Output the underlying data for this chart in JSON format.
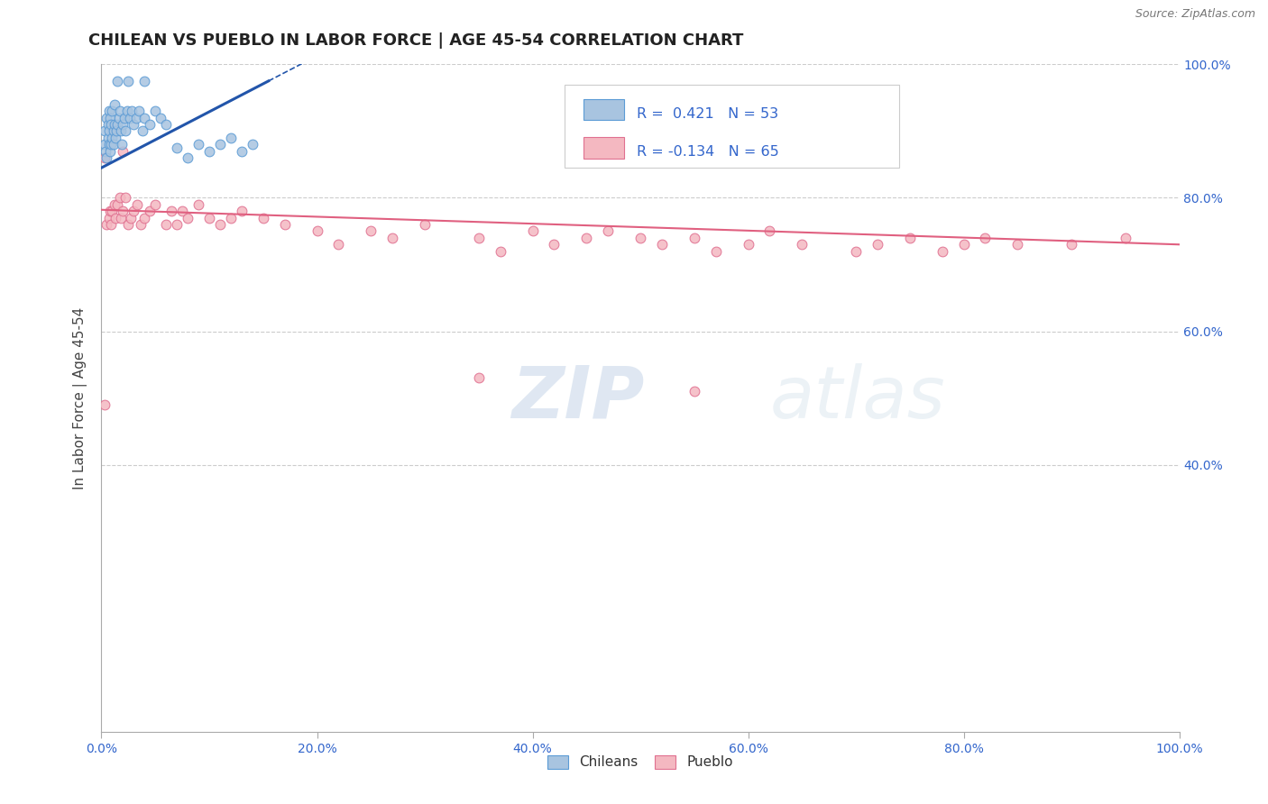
{
  "title": "CHILEAN VS PUEBLO IN LABOR FORCE | AGE 45-54 CORRELATION CHART",
  "source_text": "Source: ZipAtlas.com",
  "ylabel": "In Labor Force | Age 45-54",
  "xlabel": "",
  "xlim": [
    0.0,
    1.0
  ],
  "ylim": [
    0.0,
    1.0
  ],
  "xtick_labels": [
    "0.0%",
    "20.0%",
    "40.0%",
    "60.0%",
    "80.0%",
    "100.0%"
  ],
  "ytick_right_labels": [
    "40.0%",
    "60.0%",
    "80.0%",
    "100.0%"
  ],
  "ytick_right_vals": [
    0.4,
    0.6,
    0.8,
    1.0
  ],
  "grid_color": "#cccccc",
  "background_color": "#ffffff",
  "chilean_color": "#a8c4e0",
  "chilean_edge_color": "#5b9bd5",
  "pueblo_color": "#f4b8c1",
  "pueblo_edge_color": "#e07090",
  "blue_line_color": "#2255aa",
  "pink_line_color": "#e06080",
  "legend_R_blue": "0.421",
  "legend_N_blue": "53",
  "legend_R_pink": "-0.134",
  "legend_N_pink": "65",
  "watermark_text": "ZIPatlas",
  "title_fontsize": 13,
  "axis_fontsize": 11,
  "tick_fontsize": 10,
  "marker_size": 60,
  "chilean_x": [
    0.003,
    0.003,
    0.004,
    0.005,
    0.005,
    0.006,
    0.006,
    0.007,
    0.007,
    0.007,
    0.008,
    0.008,
    0.009,
    0.009,
    0.01,
    0.01,
    0.011,
    0.011,
    0.012,
    0.012,
    0.013,
    0.014,
    0.015,
    0.016,
    0.017,
    0.018,
    0.019,
    0.02,
    0.021,
    0.022,
    0.024,
    0.026,
    0.028,
    0.03,
    0.032,
    0.035,
    0.038,
    0.04,
    0.045,
    0.05,
    0.055,
    0.06,
    0.07,
    0.08,
    0.09,
    0.1,
    0.11,
    0.12,
    0.13,
    0.14,
    0.015,
    0.025,
    0.04
  ],
  "chilean_y": [
    0.88,
    0.9,
    0.87,
    0.92,
    0.86,
    0.89,
    0.91,
    0.88,
    0.9,
    0.93,
    0.87,
    0.92,
    0.88,
    0.91,
    0.89,
    0.93,
    0.9,
    0.88,
    0.91,
    0.94,
    0.89,
    0.9,
    0.91,
    0.92,
    0.93,
    0.9,
    0.88,
    0.91,
    0.92,
    0.9,
    0.93,
    0.92,
    0.93,
    0.91,
    0.92,
    0.93,
    0.9,
    0.92,
    0.91,
    0.93,
    0.92,
    0.91,
    0.875,
    0.86,
    0.88,
    0.87,
    0.88,
    0.89,
    0.87,
    0.88,
    0.975,
    0.975,
    0.975
  ],
  "pueblo_x": [
    0.003,
    0.005,
    0.007,
    0.008,
    0.009,
    0.01,
    0.012,
    0.013,
    0.015,
    0.017,
    0.018,
    0.02,
    0.022,
    0.025,
    0.027,
    0.03,
    0.033,
    0.036,
    0.04,
    0.045,
    0.05,
    0.06,
    0.065,
    0.07,
    0.075,
    0.08,
    0.09,
    0.1,
    0.11,
    0.12,
    0.13,
    0.15,
    0.17,
    0.2,
    0.22,
    0.25,
    0.27,
    0.3,
    0.35,
    0.37,
    0.4,
    0.42,
    0.45,
    0.47,
    0.5,
    0.52,
    0.55,
    0.57,
    0.6,
    0.62,
    0.65,
    0.7,
    0.72,
    0.75,
    0.78,
    0.8,
    0.82,
    0.85,
    0.9,
    0.95,
    0.003,
    0.01,
    0.02,
    0.35,
    0.55
  ],
  "pueblo_y": [
    0.49,
    0.76,
    0.77,
    0.78,
    0.76,
    0.78,
    0.79,
    0.77,
    0.79,
    0.8,
    0.77,
    0.78,
    0.8,
    0.76,
    0.77,
    0.78,
    0.79,
    0.76,
    0.77,
    0.78,
    0.79,
    0.76,
    0.78,
    0.76,
    0.78,
    0.77,
    0.79,
    0.77,
    0.76,
    0.77,
    0.78,
    0.77,
    0.76,
    0.75,
    0.73,
    0.75,
    0.74,
    0.76,
    0.74,
    0.72,
    0.75,
    0.73,
    0.74,
    0.75,
    0.74,
    0.73,
    0.74,
    0.72,
    0.73,
    0.75,
    0.73,
    0.72,
    0.73,
    0.74,
    0.72,
    0.73,
    0.74,
    0.73,
    0.73,
    0.74,
    0.86,
    0.9,
    0.87,
    0.53,
    0.51
  ],
  "blue_line_x": [
    0.0,
    0.155
  ],
  "blue_line_y": [
    0.845,
    0.975
  ],
  "pink_line_x": [
    0.0,
    1.0
  ],
  "pink_line_y": [
    0.782,
    0.73
  ]
}
